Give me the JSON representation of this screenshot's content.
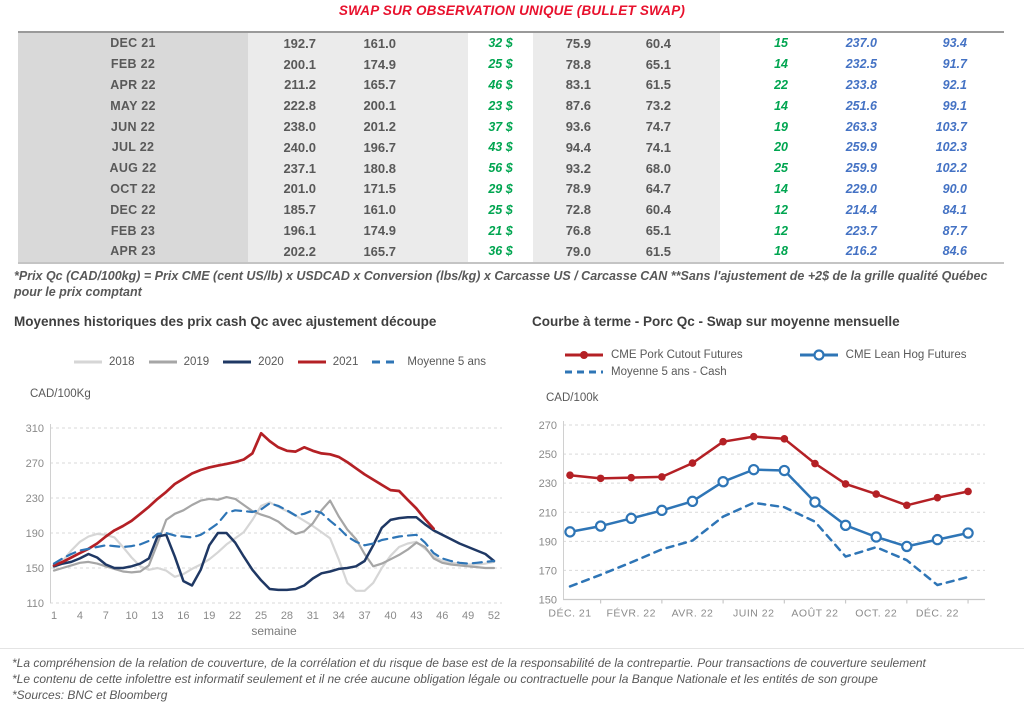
{
  "page_title": "SWAP SUR OBSERVATION UNIQUE (BULLET SWAP)",
  "table": {
    "rows": [
      {
        "month": "DEC 21",
        "qc_forward": "192.7",
        "qc_cash": "161.0",
        "basis": "32 $",
        "us_forward": "75.9",
        "us_cash": "60.4",
        "gain": "15",
        "cutout_forward": "237.0",
        "hog_forward": "93.4"
      },
      {
        "month": "FEB 22",
        "qc_forward": "200.1",
        "qc_cash": "174.9",
        "basis": "25 $",
        "us_forward": "78.8",
        "us_cash": "65.1",
        "gain": "14",
        "cutout_forward": "232.5",
        "hog_forward": "91.7"
      },
      {
        "month": "APR 22",
        "qc_forward": "211.2",
        "qc_cash": "165.7",
        "basis": "46 $",
        "us_forward": "83.1",
        "us_cash": "61.5",
        "gain": "22",
        "cutout_forward": "233.8",
        "hog_forward": "92.1"
      },
      {
        "month": "MAY 22",
        "qc_forward": "222.8",
        "qc_cash": "200.1",
        "basis": "23 $",
        "us_forward": "87.6",
        "us_cash": "73.2",
        "gain": "14",
        "cutout_forward": "251.6",
        "hog_forward": "99.1"
      },
      {
        "month": "JUN 22",
        "qc_forward": "238.0",
        "qc_cash": "201.2",
        "basis": "37 $",
        "us_forward": "93.6",
        "us_cash": "74.7",
        "gain": "19",
        "cutout_forward": "263.3",
        "hog_forward": "103.7"
      },
      {
        "month": "JUL 22",
        "qc_forward": "240.0",
        "qc_cash": "196.7",
        "basis": "43 $",
        "us_forward": "94.4",
        "us_cash": "74.1",
        "gain": "20",
        "cutout_forward": "259.9",
        "hog_forward": "102.3"
      },
      {
        "month": "AUG 22",
        "qc_forward": "237.1",
        "qc_cash": "180.8",
        "basis": "56 $",
        "us_forward": "93.2",
        "us_cash": "68.0",
        "gain": "25",
        "cutout_forward": "259.9",
        "hog_forward": "102.2"
      },
      {
        "month": "OCT 22",
        "qc_forward": "201.0",
        "qc_cash": "171.5",
        "basis": "29 $",
        "us_forward": "78.9",
        "us_cash": "64.7",
        "gain": "14",
        "cutout_forward": "229.0",
        "hog_forward": "90.0"
      },
      {
        "month": "DEC 22",
        "qc_forward": "185.7",
        "qc_cash": "161.0",
        "basis": "25 $",
        "us_forward": "72.8",
        "us_cash": "60.4",
        "gain": "12",
        "cutout_forward": "214.4",
        "hog_forward": "84.1"
      },
      {
        "month": "FEB 23",
        "qc_forward": "196.1",
        "qc_cash": "174.9",
        "basis": "21 $",
        "us_forward": "76.8",
        "us_cash": "65.1",
        "gain": "12",
        "cutout_forward": "223.7",
        "hog_forward": "87.7"
      },
      {
        "month": "APR 23",
        "qc_forward": "202.2",
        "qc_cash": "165.7",
        "basis": "36 $",
        "us_forward": "79.0",
        "us_cash": "61.5",
        "gain": "18",
        "cutout_forward": "216.2",
        "hog_forward": "84.6"
      }
    ]
  },
  "table_note": "*Prix Qc (CAD/100kg) = Prix CME (cent US/lb) x USDCAD x Conversion (lbs/kg) x Carcasse US / Carcasse CAN **Sans l'ajustement de +2$ de la grille qualité Québec pour le prix comptant",
  "chart_data": [
    {
      "type": "line",
      "title": "Moyennes historiques des prix cash Qc avec ajustement découpe",
      "ylabel": "CAD/100Kg",
      "xlabel": "semaine",
      "ylim": [
        110,
        310
      ],
      "yticks": [
        310,
        270,
        230,
        190,
        150,
        110
      ],
      "xticks": [
        1,
        4,
        7,
        10,
        13,
        16,
        19,
        22,
        25,
        28,
        31,
        34,
        37,
        40,
        43,
        46,
        49,
        52
      ],
      "x_range": [
        1,
        52
      ],
      "grid": "dashed",
      "legend_position": "top",
      "series": [
        {
          "name": "2018",
          "color": "#d6d6d6",
          "dash": null,
          "marker": null,
          "values": [
            150,
            158,
            170,
            180,
            186,
            189,
            188,
            185,
            174,
            162,
            152,
            148,
            150,
            147,
            140,
            143,
            149,
            154,
            160,
            168,
            177,
            184,
            191,
            205,
            221,
            225,
            220,
            215,
            210,
            204,
            198,
            191,
            184,
            160,
            133,
            124,
            124,
            133,
            150,
            164,
            174,
            178,
            180,
            172,
            164,
            158,
            156,
            155,
            154,
            154,
            155,
            157
          ]
        },
        {
          "name": "2019",
          "color": "#a6a6a6",
          "dash": null,
          "marker": null,
          "values": [
            147,
            150,
            153,
            156,
            157,
            155,
            152,
            149,
            146,
            145,
            146,
            153,
            178,
            205,
            212,
            216,
            222,
            227,
            229,
            228,
            231,
            229,
            222,
            215,
            211,
            208,
            203,
            195,
            189,
            192,
            201,
            216,
            227,
            209,
            194,
            183,
            166,
            152,
            155,
            160,
            165,
            171,
            179,
            174,
            161,
            156,
            154,
            153,
            152,
            151,
            150,
            150
          ]
        },
        {
          "name": "2020",
          "color": "#1f3864",
          "dash": null,
          "marker": null,
          "values": [
            152,
            155,
            157,
            161,
            166,
            162,
            154,
            150,
            150,
            152,
            155,
            161,
            186,
            188,
            163,
            135,
            130,
            148,
            176,
            190,
            190,
            179,
            163,
            148,
            136,
            126,
            125,
            125,
            126,
            130,
            138,
            144,
            146,
            149,
            150,
            152,
            158,
            176,
            196,
            205,
            207,
            208,
            208,
            200,
            193,
            188,
            183,
            178,
            174,
            170,
            166,
            158
          ]
        },
        {
          "name": "2021",
          "color": "#b42025",
          "dash": null,
          "marker": null,
          "values": [
            153,
            157,
            162,
            167,
            172,
            178,
            186,
            193,
            198,
            204,
            212,
            220,
            229,
            237,
            246,
            252,
            258,
            262,
            265,
            267,
            269,
            271,
            274,
            281,
            304,
            295,
            288,
            284,
            283,
            288,
            284,
            281,
            280,
            277,
            271,
            264,
            257,
            251,
            245,
            239,
            238,
            228,
            218,
            206,
            195,
            null,
            null,
            null,
            null,
            null,
            null,
            null
          ]
        },
        {
          "name": "Moyenne 5 ans",
          "color": "#2e75b6",
          "dash": "9 6",
          "marker": null,
          "values": [
            155,
            161,
            166,
            170,
            172,
            174,
            176,
            175,
            174,
            175,
            177,
            181,
            189,
            190,
            187,
            186,
            185,
            188,
            194,
            201,
            213,
            216,
            215,
            214,
            217,
            224,
            221,
            216,
            210,
            212,
            216,
            213,
            204,
            196,
            186,
            180,
            176,
            178,
            182,
            184,
            186,
            187,
            188,
            179,
            167,
            161,
            158,
            156,
            155,
            156,
            157,
            158
          ]
        }
      ]
    },
    {
      "type": "line",
      "title": "Courbe à terme - Porc Qc - Swap sur moyenne mensuelle",
      "ylabel": "CAD/100k",
      "xlabel": "",
      "ylim": [
        150,
        270
      ],
      "yticks": [
        270,
        250,
        230,
        210,
        190,
        170,
        150
      ],
      "xtick_labels": [
        "DÉC. 21",
        "FÉVR. 22",
        "AVR. 22",
        "JUIN 22",
        "AOÛT 22",
        "OCT. 22",
        "DÉC. 22"
      ],
      "grid": "dashed",
      "legend_position": "top",
      "series": [
        {
          "name": "CME Pork Cutout Futures",
          "color": "#b42025",
          "dash": null,
          "marker": "dot",
          "values": [
            235.5,
            233.3,
            233.8,
            234.3,
            243.8,
            258.5,
            262.0,
            260.5,
            243.5,
            229.5,
            222.5,
            214.8,
            220.0,
            224.3
          ]
        },
        {
          "name": "CME Lean Hog Futures",
          "color": "#2e75b6",
          "dash": null,
          "marker": "circle",
          "values": [
            196.5,
            200.5,
            205.8,
            211.3,
            217.5,
            231.0,
            239.3,
            238.7,
            217.0,
            201.0,
            193.0,
            186.5,
            191.2,
            195.7
          ]
        },
        {
          "name": "Moyenne 5 ans - Cash",
          "color": "#2e75b6",
          "dash": "7 6",
          "marker": null,
          "values": [
            159,
            167,
            175.5,
            184.5,
            190.5,
            207,
            216.5,
            213.5,
            203.5,
            179.5,
            186,
            177,
            160,
            165.5
          ]
        }
      ]
    }
  ],
  "footer": {
    "line1": "*La compréhension de la relation de couverture, de la corrélation et du risque de base est de la responsabilité de la contrepartie. Pour transactions de couverture seulement",
    "line2": "*Le contenu de cette infolettre est informatif seulement et il ne crée aucune obligation légale ou contractuelle pour la Banque Nationale et les entités de son groupe",
    "line3": "*Sources: BNC et Bloomberg"
  },
  "colors": {
    "title_red": "#e8112d",
    "table_text": "#595959",
    "basis_green": "#00a550",
    "futures_blue": "#4472c4",
    "line_red": "#b42025",
    "line_navy": "#1f3864",
    "line_blue": "#2e75b6",
    "gridline": "#d9d9d9"
  }
}
